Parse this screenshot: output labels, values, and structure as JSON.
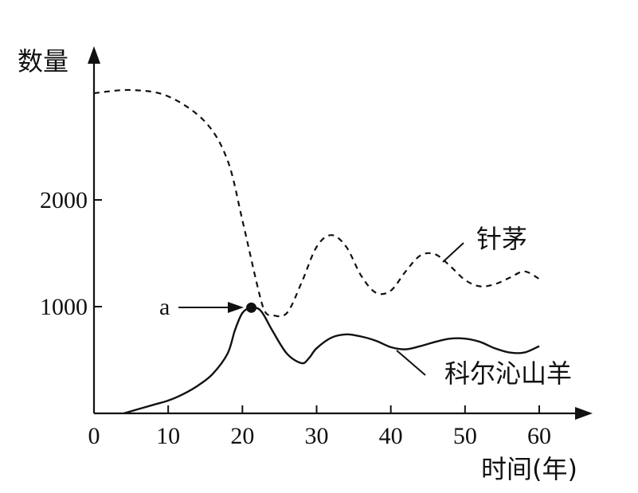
{
  "chart_data": {
    "type": "line",
    "xlabel": "时间(年)",
    "ylabel": "数量",
    "xlim": [
      0,
      60
    ],
    "ylim": [
      0,
      3000
    ],
    "x_ticks": [
      "0",
      "10",
      "20",
      "30",
      "40",
      "50",
      "60"
    ],
    "y_ticks": [
      "1000",
      "2000"
    ],
    "series": [
      {
        "name": "针茅",
        "style": "dashed",
        "x": [
          0,
          5,
          10,
          15,
          18,
          20,
          22,
          23,
          24,
          26,
          28,
          30,
          32,
          34,
          36,
          38,
          40,
          42,
          44,
          46,
          48,
          50,
          52,
          54,
          56,
          58,
          60
        ],
        "y": [
          3000,
          3030,
          2970,
          2730,
          2370,
          1810,
          1200,
          960,
          920,
          940,
          1230,
          1560,
          1670,
          1560,
          1290,
          1130,
          1150,
          1330,
          1480,
          1490,
          1380,
          1250,
          1190,
          1210,
          1270,
          1330,
          1260
        ]
      },
      {
        "name": "科尔沁山羊",
        "style": "solid",
        "x": [
          4,
          8,
          10,
          12,
          14,
          16,
          18,
          19,
          20,
          21.2,
          22.5,
          24,
          26,
          28,
          29,
          30,
          32,
          34,
          36,
          38,
          40,
          42,
          44,
          46,
          48,
          50,
          52,
          54,
          56,
          58,
          60
        ],
        "y": [
          0,
          80,
          120,
          180,
          260,
          370,
          560,
          780,
          940,
          990,
          960,
          780,
          560,
          470,
          520,
          610,
          710,
          740,
          720,
          680,
          620,
          600,
          630,
          670,
          700,
          700,
          670,
          610,
          570,
          570,
          630
        ]
      }
    ],
    "annotation": {
      "label": "a",
      "x": 21.2,
      "y": 990
    }
  }
}
